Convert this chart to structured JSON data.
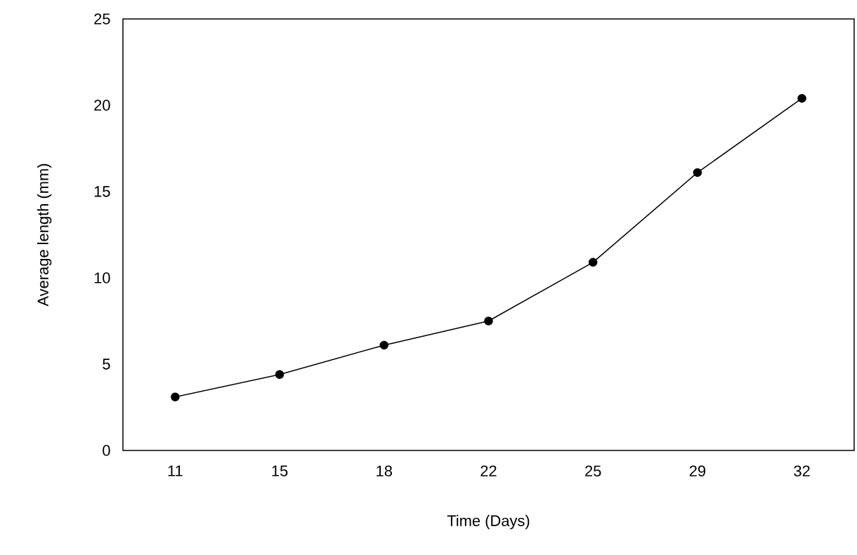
{
  "chart_data": {
    "type": "line",
    "xlabel": "Time (Days)",
    "ylabel": "Average length  (mm)",
    "categories": [
      "11",
      "15",
      "18",
      "22",
      "25",
      "29",
      "32"
    ],
    "values": [
      3.1,
      4.4,
      6.1,
      7.5,
      10.9,
      16.1,
      20.4
    ],
    "color": "#000000",
    "marker": "circle",
    "line_style": "solid",
    "ylim": [
      0,
      25
    ],
    "yticks": [
      0,
      5,
      10,
      15,
      20,
      25
    ]
  }
}
